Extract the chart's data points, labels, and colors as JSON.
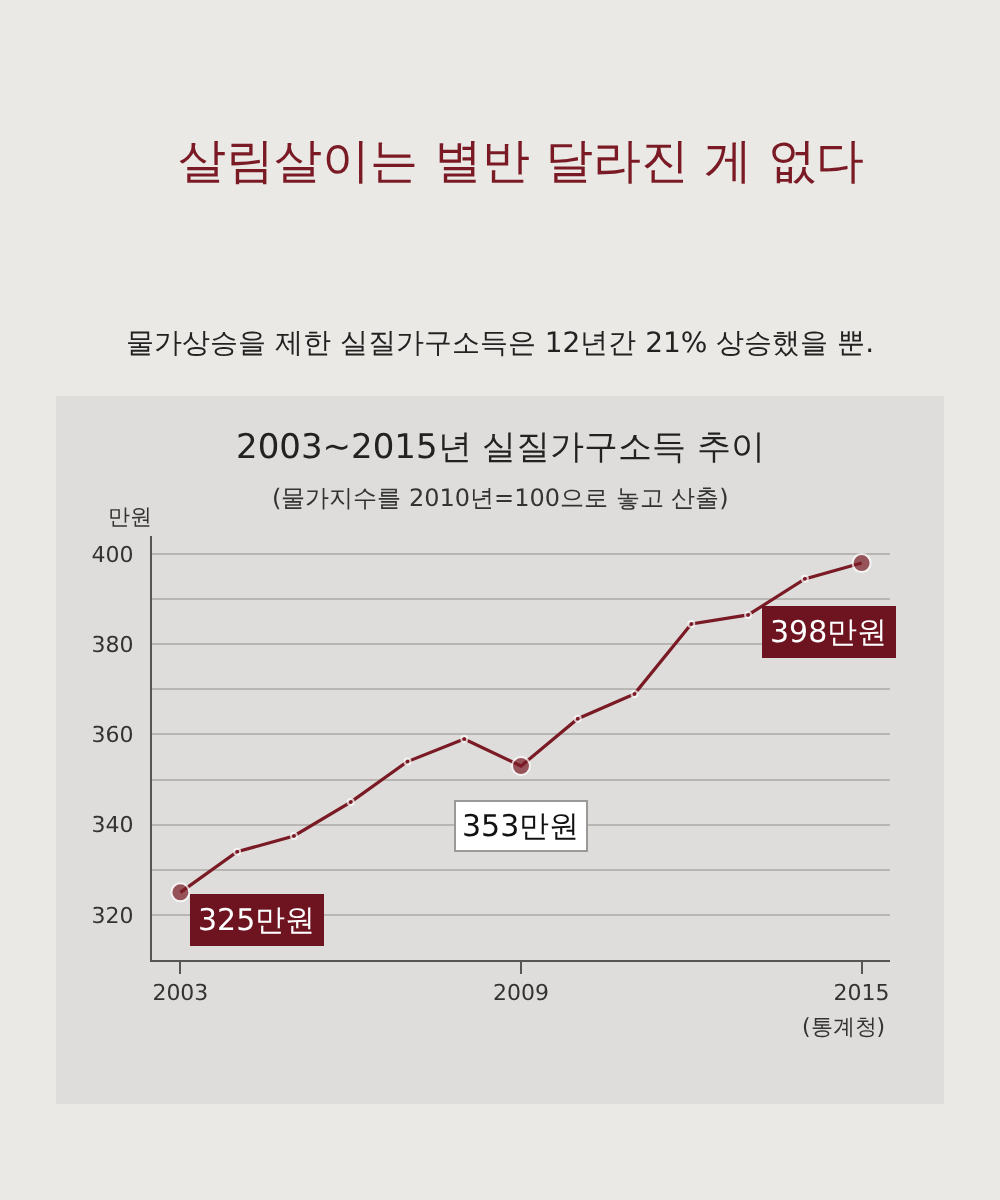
{
  "chart_data": {
    "type": "line",
    "title": "살림살이는 별반 달라진 게 없다",
    "subtitle": "물가상승을 제한 실질가구소득은 12년간 21% 상승했을 뿐.",
    "ylabel": "만원",
    "annotations": [
      "2003~2015년 실질가구소득 추이",
      "(물가지수를 2010년=100으로 놓고 산출)",
      "(통계청)"
    ],
    "x": [
      2003,
      2004,
      2005,
      2006,
      2007,
      2008,
      2009,
      2010,
      2011,
      2012,
      2013,
      2014,
      2015
    ],
    "series": [
      {
        "color": "#7a1a24",
        "values": [
          325,
          334,
          337.5,
          345,
          354,
          359,
          353,
          363.5,
          369,
          384.5,
          386.5,
          394.5,
          398
        ],
        "value_labels": [
          "325만원",
          null,
          null,
          null,
          null,
          null,
          "353만원",
          null,
          null,
          null,
          null,
          null,
          "398만원"
        ]
      }
    ],
    "xlim": [
      2002.5,
      2015.5
    ],
    "xticks": [
      2003,
      2009,
      2015
    ],
    "ylim": [
      310,
      404
    ],
    "yticks": [
      320,
      {
        "value": 330,
        "label": null
      },
      340,
      {
        "value": 350,
        "label": null
      },
      360,
      {
        "value": 370,
        "label": null
      },
      380,
      {
        "value": 390,
        "label": null
      },
      400
    ],
    "grid": "y",
    "marker": "circle",
    "line_style": "solid"
  }
}
